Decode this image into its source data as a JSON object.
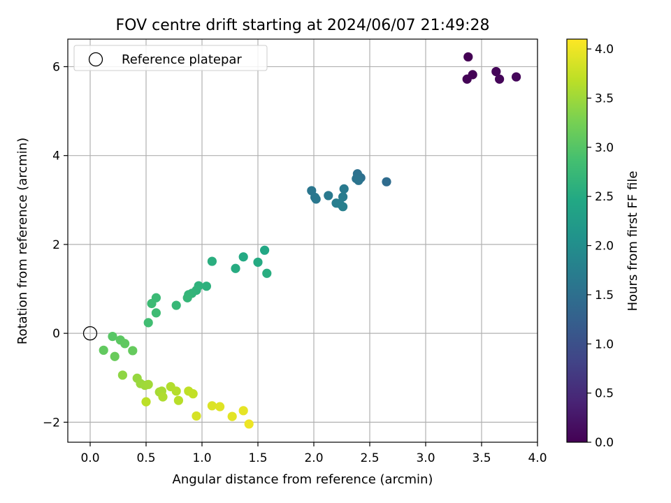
{
  "chart_data": {
    "type": "scatter",
    "title": "FOV centre drift starting at 2024/06/07 21:49:28",
    "xlabel": "Angular distance from reference (arcmin)",
    "ylabel": "Rotation from reference (arcmin)",
    "xlim": [
      -0.2,
      4.0
    ],
    "ylim": [
      -2.45,
      6.62
    ],
    "xticks": [
      0.0,
      0.5,
      1.0,
      1.5,
      2.0,
      2.5,
      3.0,
      3.5,
      4.0
    ],
    "xtick_labels": [
      "0.0",
      "0.5",
      "1.0",
      "1.5",
      "2.0",
      "2.5",
      "3.0",
      "3.5",
      "4.0"
    ],
    "yticks": [
      -2,
      0,
      2,
      4,
      6
    ],
    "ytick_labels": [
      "−2",
      "0",
      "2",
      "4",
      "6"
    ],
    "grid": true,
    "legend": {
      "location": "upper-left",
      "entries": [
        "Reference platepar"
      ]
    },
    "reference_point": {
      "x": 0.0,
      "y": 0.0
    },
    "colorbar": {
      "label": "Hours from first FF file",
      "colormap": "viridis",
      "range": [
        0.0,
        4.1
      ],
      "ticks": [
        0.0,
        0.5,
        1.0,
        1.5,
        2.0,
        2.5,
        3.0,
        3.5,
        4.0
      ],
      "tick_labels": [
        "0.0",
        "0.5",
        "1.0",
        "1.5",
        "2.0",
        "2.5",
        "3.0",
        "3.5",
        "4.0"
      ]
    },
    "points": [
      {
        "x": 3.38,
        "y": 6.22,
        "c": 0.0
      },
      {
        "x": 3.42,
        "y": 5.82,
        "c": 0.02
      },
      {
        "x": 3.37,
        "y": 5.72,
        "c": 0.03
      },
      {
        "x": 3.63,
        "y": 5.89,
        "c": 0.05
      },
      {
        "x": 3.66,
        "y": 5.72,
        "c": 0.06
      },
      {
        "x": 3.81,
        "y": 5.77,
        "c": 0.07
      },
      {
        "x": 2.65,
        "y": 3.41,
        "c": 1.45
      },
      {
        "x": 2.42,
        "y": 3.5,
        "c": 1.5
      },
      {
        "x": 2.39,
        "y": 3.59,
        "c": 1.52
      },
      {
        "x": 2.38,
        "y": 3.48,
        "c": 1.55
      },
      {
        "x": 2.4,
        "y": 3.44,
        "c": 1.57
      },
      {
        "x": 1.98,
        "y": 3.21,
        "c": 1.6
      },
      {
        "x": 2.01,
        "y": 3.06,
        "c": 1.62
      },
      {
        "x": 2.02,
        "y": 3.02,
        "c": 1.63
      },
      {
        "x": 2.13,
        "y": 3.1,
        "c": 1.65
      },
      {
        "x": 2.27,
        "y": 3.25,
        "c": 1.68
      },
      {
        "x": 2.26,
        "y": 3.07,
        "c": 1.7
      },
      {
        "x": 2.2,
        "y": 2.93,
        "c": 1.72
      },
      {
        "x": 2.23,
        "y": 2.92,
        "c": 1.74
      },
      {
        "x": 2.26,
        "y": 2.85,
        "c": 1.76
      },
      {
        "x": 1.56,
        "y": 1.87,
        "c": 2.45
      },
      {
        "x": 1.37,
        "y": 1.72,
        "c": 2.48
      },
      {
        "x": 1.5,
        "y": 1.6,
        "c": 2.5
      },
      {
        "x": 1.3,
        "y": 1.46,
        "c": 2.52
      },
      {
        "x": 1.58,
        "y": 1.35,
        "c": 2.55
      },
      {
        "x": 1.09,
        "y": 1.62,
        "c": 2.57
      },
      {
        "x": 1.04,
        "y": 1.06,
        "c": 2.6
      },
      {
        "x": 0.97,
        "y": 1.07,
        "c": 2.62
      },
      {
        "x": 0.95,
        "y": 0.97,
        "c": 2.64
      },
      {
        "x": 0.91,
        "y": 0.9,
        "c": 2.66
      },
      {
        "x": 0.88,
        "y": 0.87,
        "c": 2.68
      },
      {
        "x": 0.87,
        "y": 0.8,
        "c": 2.7
      },
      {
        "x": 0.77,
        "y": 0.63,
        "c": 2.73
      },
      {
        "x": 0.59,
        "y": 0.8,
        "c": 2.76
      },
      {
        "x": 0.55,
        "y": 0.67,
        "c": 2.78
      },
      {
        "x": 0.59,
        "y": 0.46,
        "c": 2.8
      },
      {
        "x": 0.52,
        "y": 0.24,
        "c": 2.83
      },
      {
        "x": 0.2,
        "y": -0.07,
        "c": 3.02
      },
      {
        "x": 0.27,
        "y": -0.15,
        "c": 3.05
      },
      {
        "x": 0.31,
        "y": -0.23,
        "c": 3.08
      },
      {
        "x": 0.12,
        "y": -0.38,
        "c": 3.1
      },
      {
        "x": 0.38,
        "y": -0.39,
        "c": 3.12
      },
      {
        "x": 0.22,
        "y": -0.52,
        "c": 3.15
      },
      {
        "x": 0.29,
        "y": -0.94,
        "c": 3.4
      },
      {
        "x": 0.42,
        "y": -1.01,
        "c": 3.45
      },
      {
        "x": 0.45,
        "y": -1.13,
        "c": 3.48
      },
      {
        "x": 0.49,
        "y": -1.17,
        "c": 3.5
      },
      {
        "x": 0.52,
        "y": -1.15,
        "c": 3.52
      },
      {
        "x": 0.62,
        "y": -1.32,
        "c": 3.55
      },
      {
        "x": 0.64,
        "y": -1.3,
        "c": 3.57
      },
      {
        "x": 0.65,
        "y": -1.43,
        "c": 3.6
      },
      {
        "x": 0.72,
        "y": -1.2,
        "c": 3.62
      },
      {
        "x": 0.77,
        "y": -1.3,
        "c": 3.64
      },
      {
        "x": 0.79,
        "y": -1.51,
        "c": 3.66
      },
      {
        "x": 0.5,
        "y": -1.54,
        "c": 3.68
      },
      {
        "x": 0.88,
        "y": -1.3,
        "c": 3.7
      },
      {
        "x": 0.92,
        "y": -1.36,
        "c": 3.72
      },
      {
        "x": 0.95,
        "y": -1.86,
        "c": 3.85
      },
      {
        "x": 1.09,
        "y": -1.63,
        "c": 3.88
      },
      {
        "x": 1.16,
        "y": -1.65,
        "c": 3.9
      },
      {
        "x": 1.27,
        "y": -1.87,
        "c": 3.93
      },
      {
        "x": 1.37,
        "y": -1.74,
        "c": 3.95
      },
      {
        "x": 1.42,
        "y": -2.04,
        "c": 4.0
      }
    ]
  }
}
